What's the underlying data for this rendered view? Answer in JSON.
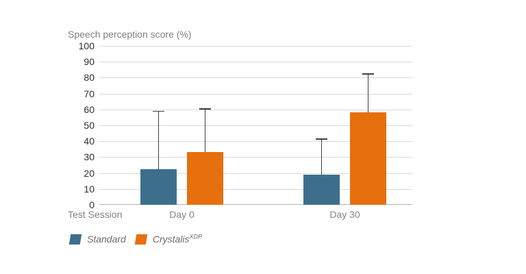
{
  "chart_data": {
    "type": "bar",
    "title": "Speech perception score (%)",
    "xlabel": "Test Session",
    "categories": [
      "Day 0",
      "Day 30"
    ],
    "series": [
      {
        "name": "Standard",
        "label_base": "Standard",
        "label_sup": "",
        "color": "#3d6f8d",
        "values": [
          22.5,
          19
        ],
        "error_top": [
          58.5,
          41
        ]
      },
      {
        "name": "Crystalis XDP",
        "label_base": "Crystalis",
        "label_sup": "XDP",
        "color": "#e76f0d",
        "values": [
          33,
          58
        ],
        "error_top": [
          60,
          82
        ]
      }
    ],
    "ylim": [
      0,
      100
    ],
    "ytick_step": 10,
    "grid": true,
    "error_bars": "upper-only",
    "legend_position": "bottom-left"
  },
  "colors": {
    "background": "#ffffff",
    "gridline": "#dadada",
    "axis_line": "#b0b0b0",
    "error_bar": "#404040",
    "title_text": "#808080",
    "ytick_text": "#2e2e2e",
    "xtick_text": "#828282",
    "legend_text": "#6b6b6b"
  }
}
